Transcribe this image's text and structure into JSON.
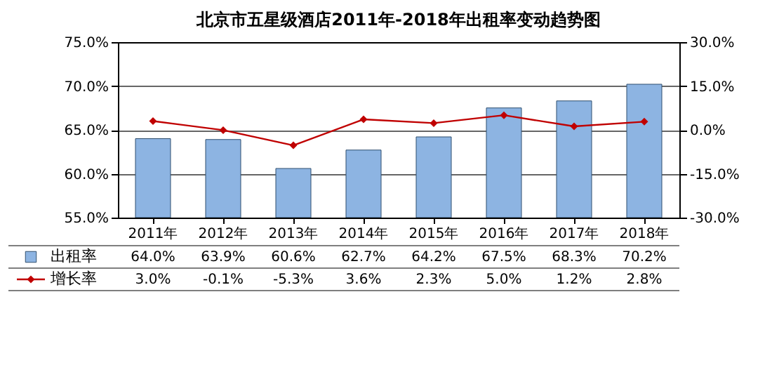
{
  "chart_data": {
    "type": "bar",
    "title": "北京市五星级酒店2011年-2018年出租率变动趋势图",
    "categories": [
      "2011年",
      "2012年",
      "2013年",
      "2014年",
      "2015年",
      "2016年",
      "2017年",
      "2018年"
    ],
    "series": [
      {
        "name": "出租率",
        "color": "#8db4e2",
        "values": [
          64.0,
          63.9,
          60.6,
          62.7,
          64.2,
          67.5,
          68.3,
          70.2
        ],
        "value_labels": [
          "64.0%",
          "63.9%",
          "60.6%",
          "62.7%",
          "64.2%",
          "67.5%",
          "68.3%",
          "70.2%"
        ]
      },
      {
        "name": "增长率",
        "type": "line",
        "axis": "y2",
        "color": "#c00000",
        "values": [
          3.0,
          -0.1,
          -5.3,
          3.6,
          2.3,
          5.0,
          1.2,
          2.8
        ],
        "value_labels": [
          "3.0%",
          "-0.1%",
          "-5.3%",
          "3.6%",
          "2.3%",
          "5.0%",
          "1.2%",
          "2.8%"
        ]
      }
    ],
    "ylim": [
      55,
      75
    ],
    "yticks": [
      {
        "value": 55,
        "label": "55.0%"
      },
      {
        "value": 60,
        "label": "60.0%"
      },
      {
        "value": 65,
        "label": "65.0%"
      },
      {
        "value": 70,
        "label": "70.0%"
      },
      {
        "value": 75,
        "label": "75.0%"
      }
    ],
    "y2lim": [
      -30,
      30
    ],
    "y2ticks": [
      {
        "value": -30,
        "label": "-30.0%"
      },
      {
        "value": -15,
        "label": "-15.0%"
      },
      {
        "value": 0,
        "label": "0.0%"
      },
      {
        "value": 15,
        "label": "15.0%"
      },
      {
        "value": 30,
        "label": "30.0%"
      }
    ],
    "grid": "y",
    "legend": "bottom",
    "marker": "diamond"
  }
}
